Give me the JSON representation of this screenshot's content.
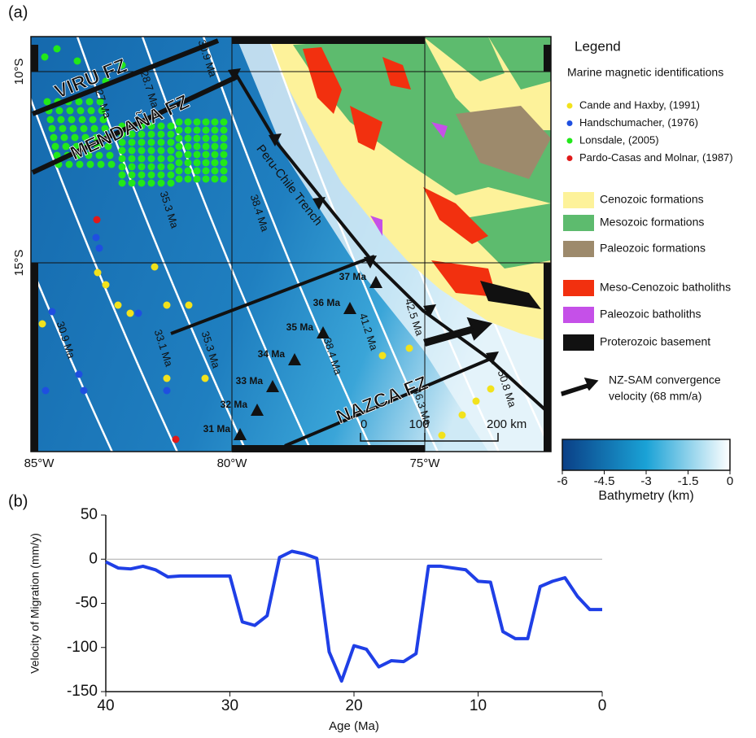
{
  "panel_labels": [
    "(a)",
    "(b)"
  ],
  "map": {
    "lat_labels": [
      "10°S",
      "15°S"
    ],
    "lon_labels": [
      "85°W",
      "80°W",
      "75°W"
    ],
    "fracture_zones": [
      "VIRU FZ",
      "MENDAÑA FZ",
      "NAZCA FZ"
    ],
    "trench": "Peru-Chile Trench",
    "isochrons": [
      "30.9 Ma",
      "28.7 Ma",
      "27 Ma",
      "35.3 Ma",
      "38.4 Ma",
      "30.9 Ma",
      "33.1 Ma",
      "35.3 Ma",
      "38.4 Ma",
      "41.2 Ma",
      "42.5 Ma",
      "46.3 Ma",
      "50.8 Ma"
    ],
    "age_points": [
      "31 Ma",
      "32 Ma",
      "33 Ma",
      "34 Ma",
      "35 Ma",
      "36 Ma",
      "37 Ma"
    ],
    "scale_bar": [
      "0",
      "100",
      "200 km"
    ],
    "legend": {
      "title": "Legend",
      "subtitle": "Marine magnetic identifications",
      "sources": [
        {
          "name": "Cande and Haxby, (1991)",
          "color": "#f2e21c"
        },
        {
          "name": "Handschumacher, (1976)",
          "color": "#1f4fe0"
        },
        {
          "name": "Lonsdale, (2005)",
          "color": "#22e81a"
        },
        {
          "name": "Pardo-Casas and Molnar, (1987)",
          "color": "#e01a1a"
        }
      ],
      "units": [
        {
          "name": "Cenozoic formations",
          "color": "#fdf29a"
        },
        {
          "name": "Mesozoic formations",
          "color": "#5dbb6e"
        },
        {
          "name": "Paleozoic formations",
          "color": "#9d8a6c"
        },
        {
          "name": "Meso-Cenozoic  batholiths",
          "color": "#f2300f"
        },
        {
          "name": "Paleozoic batholiths",
          "color": "#c550e8"
        },
        {
          "name": "Proterozoic basement",
          "color": "#111111"
        }
      ],
      "arrow_label": [
        "NZ-SAM convergence",
        "velocity (68 mm/a)"
      ]
    },
    "colorbar": {
      "label": "Bathymetry (km)",
      "lim": [
        -6,
        0
      ],
      "ticks": [
        -6,
        -4.5,
        -3,
        -1.5,
        0
      ]
    }
  },
  "chart_data": {
    "type": "line",
    "xlabel": "Age (Ma)",
    "ylabel": "Velocity of Migration (mm/y)",
    "x": [
      40,
      39,
      38,
      37,
      36,
      35,
      34,
      33,
      32,
      31,
      30,
      29,
      28,
      27,
      26,
      25,
      24,
      23,
      22,
      21,
      20,
      19,
      18,
      17,
      16,
      15,
      14,
      13,
      12,
      11,
      10,
      9,
      8,
      7,
      6,
      5,
      4,
      3,
      2,
      1,
      0
    ],
    "values": [
      -3,
      -10,
      -11,
      -8,
      -12,
      -20,
      -19,
      -19,
      -19,
      -19,
      -19,
      -71,
      -75,
      -64,
      2,
      9,
      6,
      1,
      -105,
      -138,
      -98,
      -102,
      -122,
      -115,
      -116,
      -107,
      -8,
      -8,
      -10,
      -12,
      -25,
      -26,
      -82,
      -90,
      -90,
      -31,
      -25,
      -21,
      -42,
      -57,
      -57
    ],
    "color": "#1f3fe6",
    "xlim": [
      40,
      0
    ],
    "xticks": [
      40,
      30,
      20,
      10,
      0
    ],
    "ylim": [
      -150,
      50
    ],
    "yticks": [
      -150,
      -100,
      -50,
      0,
      50
    ]
  }
}
